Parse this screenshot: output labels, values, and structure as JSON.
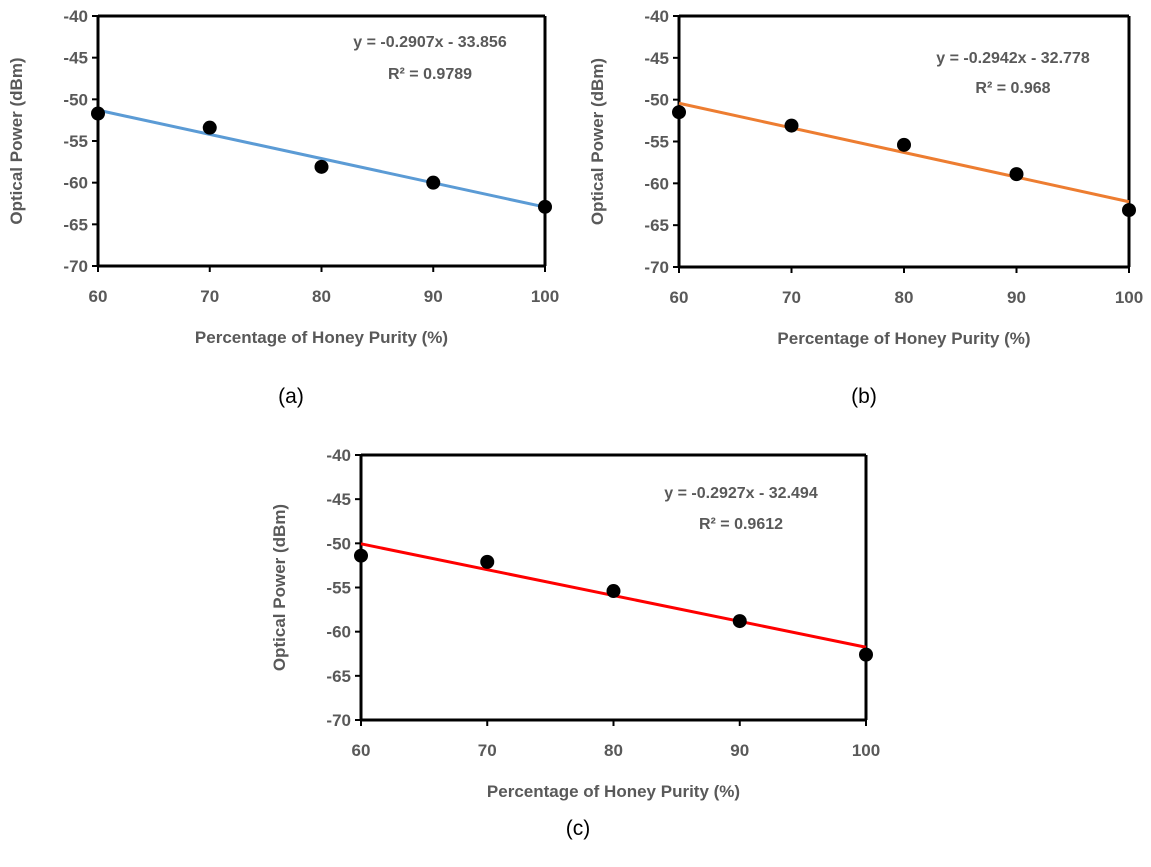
{
  "chart_data": [
    {
      "type": "scatter",
      "panel": "(a)",
      "xlabel": "Percentage of Honey Purity (%)",
      "ylabel": "Optical Power (dBm)",
      "xlim": [
        60,
        100
      ],
      "ylim": [
        -70,
        -40
      ],
      "xticks": [
        60,
        70,
        80,
        90,
        100
      ],
      "yticks": [
        -40,
        -45,
        -50,
        -55,
        -60,
        -65,
        -70
      ],
      "x": [
        60,
        70,
        80,
        90,
        100
      ],
      "y": [
        -51.7,
        -53.4,
        -58.1,
        -60.0,
        -62.9
      ],
      "trendline": {
        "slope": -0.2907,
        "intercept": -33.856,
        "color": "#5b9bd5"
      },
      "equation": "y = -0.2907x - 33.856",
      "r2": "R² = 0.9789",
      "grid": false,
      "legend": "none"
    },
    {
      "type": "scatter",
      "panel": "(b)",
      "xlabel": "Percentage of Honey Purity (%)",
      "ylabel": "Optical Power (dBm)",
      "xlim": [
        60,
        100
      ],
      "ylim": [
        -70,
        -40
      ],
      "xticks": [
        60,
        70,
        80,
        90,
        100
      ],
      "yticks": [
        -40,
        -45,
        -50,
        -55,
        -60,
        -65,
        -70
      ],
      "x": [
        60,
        70,
        80,
        90,
        100
      ],
      "y": [
        -51.5,
        -53.1,
        -55.4,
        -58.9,
        -63.2
      ],
      "trendline": {
        "slope": -0.2942,
        "intercept": -32.778,
        "color": "#ed7d31"
      },
      "equation": "y = -0.2942x - 32.778",
      "r2": "R² = 0.968",
      "grid": false,
      "legend": "none"
    },
    {
      "type": "scatter",
      "panel": "(c)",
      "xlabel": "Percentage of Honey Purity (%)",
      "ylabel": "Optical Power (dBm)",
      "xlim": [
        60,
        100
      ],
      "ylim": [
        -70,
        -40
      ],
      "xticks": [
        60,
        70,
        80,
        90,
        100
      ],
      "yticks": [
        -40,
        -45,
        -50,
        -55,
        -60,
        -65,
        -70
      ],
      "x": [
        60,
        70,
        80,
        90,
        100
      ],
      "y": [
        -51.4,
        -52.1,
        -55.4,
        -58.8,
        -62.6
      ],
      "trendline": {
        "slope": -0.2927,
        "intercept": -32.494,
        "color": "#ff0000"
      },
      "equation": "y = -0.2927x - 32.494",
      "r2": "R² = 0.9612",
      "grid": false,
      "legend": "none"
    }
  ],
  "captions": [
    "(a)",
    "(b)",
    "(c)"
  ],
  "colors": {
    "marker": "#000000",
    "axis": "#000000",
    "text": "#595959"
  }
}
